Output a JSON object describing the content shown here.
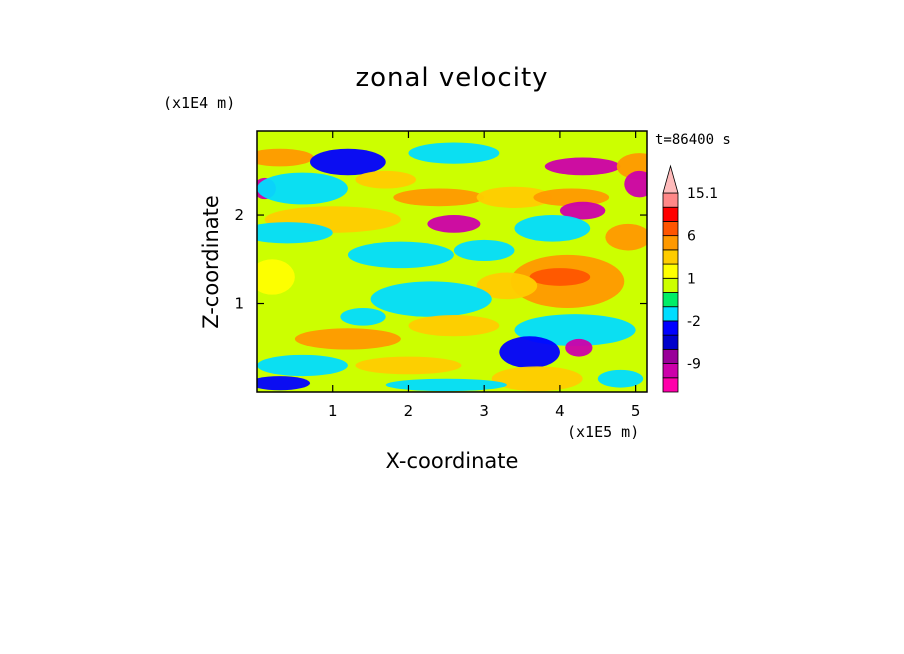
{
  "chart_data": {
    "type": "heatmap",
    "title": "zonal velocity",
    "xlabel": "X-coordinate",
    "ylabel": "Z-coordinate",
    "x_scale_label": "(x1E5 m)",
    "y_scale_label": "(x1E4 m)",
    "time_label": "t=86400 s",
    "xlim": [
      0,
      5.15
    ],
    "ylim": [
      0,
      2.95
    ],
    "x_ticks": [
      1,
      2,
      3,
      4,
      5
    ],
    "y_ticks": [
      1,
      2
    ],
    "colorbar": {
      "levels": [
        -15,
        -12,
        -9,
        -6,
        -3,
        -2,
        -1,
        0,
        1,
        2,
        3,
        6,
        9,
        12,
        15.1
      ],
      "colors": [
        "#ff00aa",
        "#cc00aa",
        "#990099",
        "#0000cc",
        "#0000ff",
        "#00ddff",
        "#00ee66",
        "#ccff00",
        "#ffff00",
        "#ffcc00",
        "#ff9900",
        "#ff5500",
        "#ff0000",
        "#ff8888",
        "#ffbbbb"
      ],
      "extend": "max",
      "labeled_levels": [
        "15.1",
        "6",
        "1",
        "-2",
        "-9"
      ]
    },
    "blobs": [
      {
        "x": 0.3,
        "z": 2.65,
        "w": 0.45,
        "h": 0.1,
        "v": 4
      },
      {
        "x": 1.2,
        "z": 2.6,
        "w": 0.5,
        "h": 0.15,
        "v": -3
      },
      {
        "x": 2.6,
        "z": 2.7,
        "w": 0.6,
        "h": 0.12,
        "v": -2
      },
      {
        "x": 4.3,
        "z": 2.55,
        "w": 0.5,
        "h": 0.1,
        "v": -10
      },
      {
        "x": 5.05,
        "z": 2.55,
        "w": 0.3,
        "h": 0.15,
        "v": 5
      },
      {
        "x": 5.05,
        "z": 2.35,
        "w": 0.2,
        "h": 0.15,
        "v": -10
      },
      {
        "x": 0.1,
        "z": 2.3,
        "w": 0.15,
        "h": 0.12,
        "v": -10
      },
      {
        "x": 0.6,
        "z": 2.3,
        "w": 0.6,
        "h": 0.18,
        "v": -1.5
      },
      {
        "x": 1.7,
        "z": 2.4,
        "w": 0.4,
        "h": 0.1,
        "v": 2
      },
      {
        "x": 2.4,
        "z": 2.2,
        "w": 0.6,
        "h": 0.1,
        "v": 4
      },
      {
        "x": 2.6,
        "z": 1.9,
        "w": 0.35,
        "h": 0.1,
        "v": -10
      },
      {
        "x": 3.4,
        "z": 2.2,
        "w": 0.5,
        "h": 0.12,
        "v": 2
      },
      {
        "x": 4.15,
        "z": 2.2,
        "w": 0.5,
        "h": 0.1,
        "v": 4
      },
      {
        "x": 4.3,
        "z": 2.05,
        "w": 0.3,
        "h": 0.1,
        "v": -10
      },
      {
        "x": 1.0,
        "z": 1.95,
        "w": 0.9,
        "h": 0.15,
        "v": 2
      },
      {
        "x": 0.4,
        "z": 1.8,
        "w": 0.6,
        "h": 0.12,
        "v": -1.5
      },
      {
        "x": 3.9,
        "z": 1.85,
        "w": 0.5,
        "h": 0.15,
        "v": -1.5
      },
      {
        "x": 1.9,
        "z": 1.55,
        "w": 0.7,
        "h": 0.15,
        "v": -1.5
      },
      {
        "x": 3.0,
        "z": 1.6,
        "w": 0.4,
        "h": 0.12,
        "v": -2
      },
      {
        "x": 4.9,
        "z": 1.75,
        "w": 0.3,
        "h": 0.15,
        "v": 3
      },
      {
        "x": 0.2,
        "z": 1.3,
        "w": 0.3,
        "h": 0.2,
        "v": 1.5
      },
      {
        "x": 4.1,
        "z": 1.25,
        "w": 0.75,
        "h": 0.3,
        "v": 4
      },
      {
        "x": 4.0,
        "z": 1.3,
        "w": 0.4,
        "h": 0.1,
        "v": 6
      },
      {
        "x": 3.3,
        "z": 1.2,
        "w": 0.4,
        "h": 0.15,
        "v": 2
      },
      {
        "x": 2.3,
        "z": 1.05,
        "w": 0.8,
        "h": 0.2,
        "v": -1.5
      },
      {
        "x": 1.4,
        "z": 0.85,
        "w": 0.3,
        "h": 0.1,
        "v": -1.5
      },
      {
        "x": 1.2,
        "z": 0.6,
        "w": 0.7,
        "h": 0.12,
        "v": 4
      },
      {
        "x": 2.6,
        "z": 0.75,
        "w": 0.6,
        "h": 0.12,
        "v": 2
      },
      {
        "x": 4.2,
        "z": 0.7,
        "w": 0.8,
        "h": 0.18,
        "v": -1.5
      },
      {
        "x": 3.6,
        "z": 0.45,
        "w": 0.4,
        "h": 0.18,
        "v": -3
      },
      {
        "x": 4.25,
        "z": 0.5,
        "w": 0.18,
        "h": 0.1,
        "v": -10
      },
      {
        "x": 0.6,
        "z": 0.3,
        "w": 0.6,
        "h": 0.12,
        "v": -1.5
      },
      {
        "x": 2.0,
        "z": 0.3,
        "w": 0.7,
        "h": 0.1,
        "v": 2
      },
      {
        "x": 3.7,
        "z": 0.15,
        "w": 0.6,
        "h": 0.14,
        "v": 2
      },
      {
        "x": 0.3,
        "z": 0.1,
        "w": 0.4,
        "h": 0.08,
        "v": -3
      },
      {
        "x": 2.5,
        "z": 0.08,
        "w": 0.8,
        "h": 0.07,
        "v": -1.5
      },
      {
        "x": 4.8,
        "z": 0.15,
        "w": 0.3,
        "h": 0.1,
        "v": -1.5
      }
    ]
  }
}
